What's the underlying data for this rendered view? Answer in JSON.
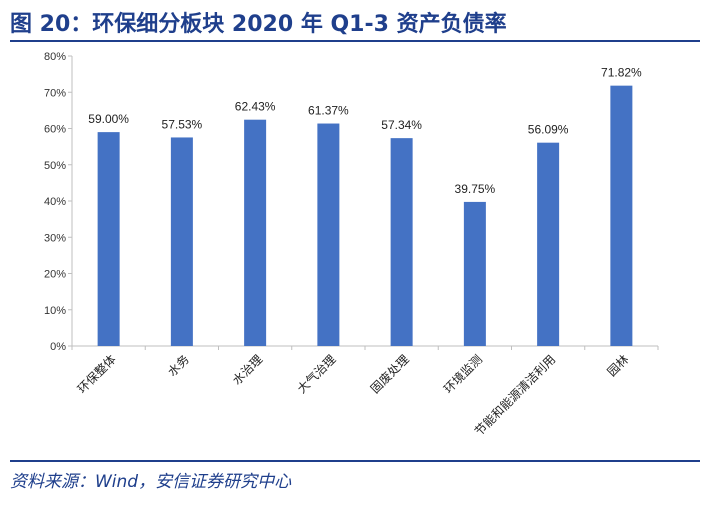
{
  "header": {
    "title": "图 20：环保细分板块 2020 年 Q1-3 资产负债率"
  },
  "footer": {
    "source": "资料来源：Wind，安信证券研究中心"
  },
  "colors": {
    "bar": "#4472c4",
    "accent": "#1f3f8c"
  },
  "chart_data": {
    "type": "bar",
    "categories": [
      "环保整体",
      "水务",
      "水治理",
      "大气治理",
      "固废处理",
      "环境监测",
      "节能和能源清洁利用",
      "园林"
    ],
    "values": [
      59.0,
      57.53,
      62.43,
      61.37,
      57.34,
      39.75,
      56.09,
      71.82
    ],
    "data_labels": [
      "59.00%",
      "57.53%",
      "62.43%",
      "61.37%",
      "57.34%",
      "39.75%",
      "56.09%",
      "71.82%"
    ],
    "yticks": [
      "0%",
      "10%",
      "20%",
      "30%",
      "40%",
      "50%",
      "60%",
      "70%",
      "80%"
    ],
    "ylim": [
      0,
      80
    ],
    "grid": false,
    "legend": "none"
  }
}
